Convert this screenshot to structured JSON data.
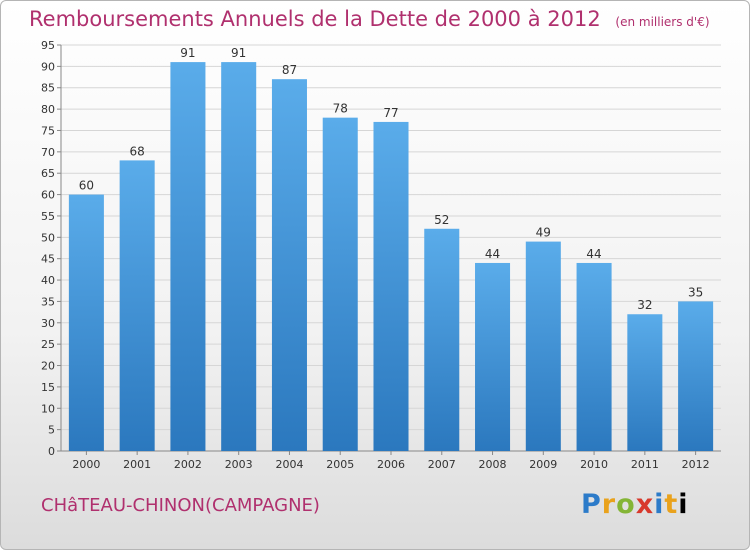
{
  "header": {
    "title": "Remboursements Annuels de la Dette de 2000 à 2012",
    "subtitle": "(en milliers d'€)"
  },
  "footer": {
    "commune": "CHâTEAU-CHINON(CAMPAGNE)",
    "logo_letters": [
      "P",
      "r",
      "o",
      "x",
      "i",
      "t",
      "i"
    ]
  },
  "colors": {
    "bar_top": "#5aacea",
    "bar_bottom": "#2b78be",
    "title": "#b0306e"
  },
  "chart_data": {
    "type": "bar",
    "categories": [
      "2000",
      "2001",
      "2002",
      "2003",
      "2004",
      "2005",
      "2006",
      "2007",
      "2008",
      "2009",
      "2010",
      "2011",
      "2012"
    ],
    "values": [
      60,
      68,
      91,
      91,
      87,
      78,
      77,
      52,
      44,
      49,
      44,
      32,
      35
    ],
    "data_labels": [
      "60",
      "68",
      "91",
      "91",
      "87",
      "78",
      "77",
      "52",
      "44",
      "49",
      "44",
      "32",
      "35"
    ],
    "ylim": [
      0,
      95
    ],
    "yticks": [
      0,
      5,
      10,
      15,
      20,
      25,
      30,
      35,
      40,
      45,
      50,
      55,
      60,
      65,
      70,
      75,
      80,
      85,
      90,
      95
    ],
    "grid": true
  }
}
